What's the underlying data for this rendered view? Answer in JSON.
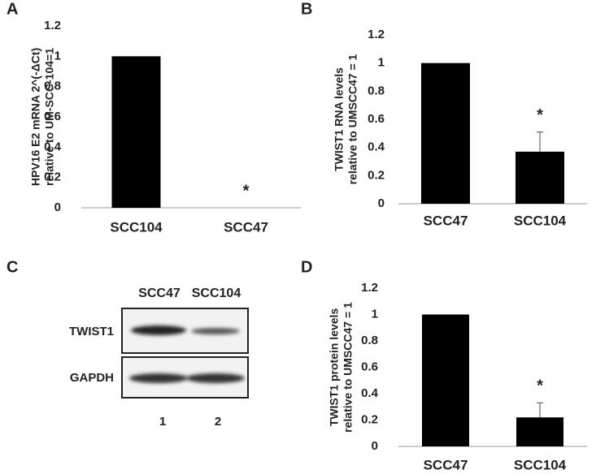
{
  "chart_data": [
    {
      "type": "bar",
      "panel_label": "A",
      "y_label": [
        "HPV16 E2 mRNA 2^(-ΔCt)",
        "relative to  UM-SCC-104=1"
      ],
      "categories": [
        "SCC104",
        "SCC47"
      ],
      "values": [
        1,
        0
      ],
      "color": "#000000",
      "ylim": [
        0,
        1.2
      ],
      "yticks": [
        0,
        0.2,
        0.4,
        0.6,
        0.8,
        1,
        1.2
      ],
      "grid": false,
      "annotations": [
        {
          "category": "SCC47",
          "text": "*"
        }
      ]
    },
    {
      "type": "bar",
      "panel_label": "B",
      "y_label": [
        "TWIST1 RNA levels",
        "relative to UMSCC47 = 1"
      ],
      "categories": [
        "SCC47",
        "SCC104"
      ],
      "values": [
        1,
        0.37
      ],
      "errors": [
        0,
        0.14
      ],
      "color": "#000000",
      "ylim": [
        0,
        1.2
      ],
      "yticks": [
        0,
        0.2,
        0.4,
        0.6,
        0.8,
        1,
        1.2
      ],
      "grid": false,
      "annotations": [
        {
          "category": "SCC104",
          "text": "*"
        }
      ]
    },
    {
      "type": "bar",
      "panel_label": "D",
      "y_label": [
        "TWIST1 protein levels",
        "relative to UMSCC47 = 1"
      ],
      "categories": [
        "SCC47",
        "SCC104"
      ],
      "values": [
        1,
        0.22
      ],
      "errors": [
        0,
        0.11
      ],
      "color": "#000000",
      "ylim": [
        0,
        1.2
      ],
      "yticks": [
        0,
        0.2,
        0.4,
        0.6,
        0.8,
        1,
        1.2
      ],
      "grid": false,
      "annotations": [
        {
          "category": "SCC104",
          "text": "*"
        }
      ]
    }
  ],
  "blot": {
    "panel_label": "C",
    "lanes": [
      "SCC47",
      "SCC104"
    ],
    "rows": [
      "TWIST1",
      "GAPDH"
    ],
    "lane_numbers": [
      "1",
      "2"
    ]
  }
}
